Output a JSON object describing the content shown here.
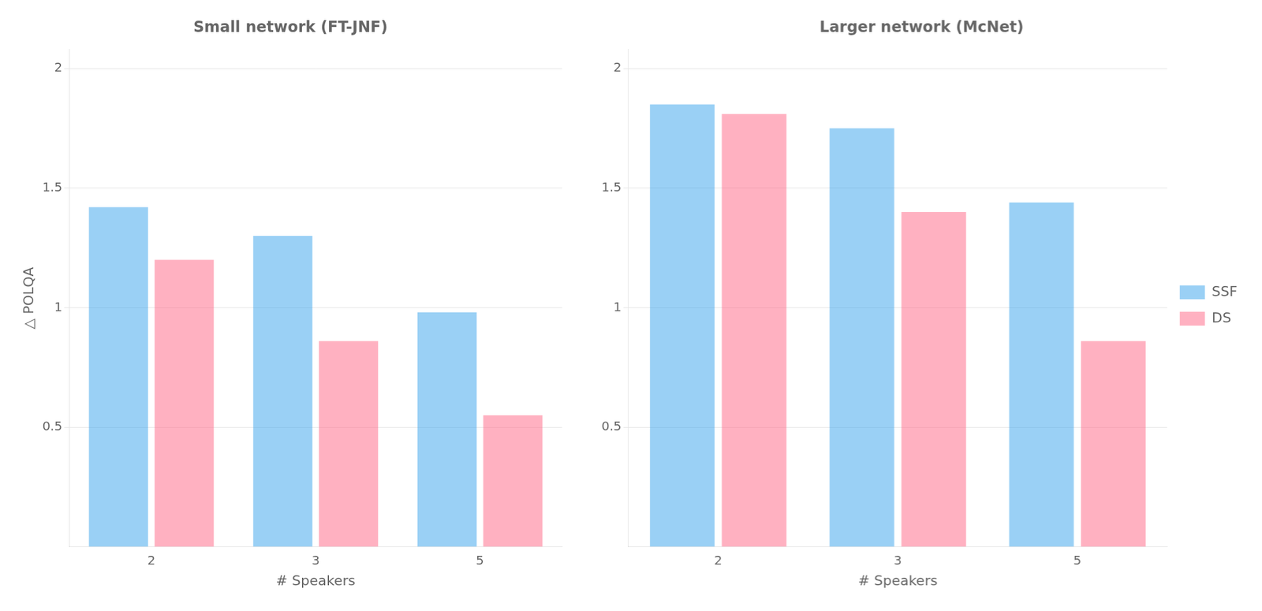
{
  "chart_data": [
    {
      "type": "bar",
      "title": "Small network (FT-JNF)",
      "x_label": "# Speakers",
      "y_label": "△ POLQA",
      "categories": [
        2,
        3,
        5
      ],
      "series": [
        {
          "name": "SSF",
          "values": [
            1.42,
            1.3,
            0.98
          ]
        },
        {
          "name": "DS",
          "values": [
            1.2,
            0.86,
            0.55
          ]
        }
      ],
      "ylim": [
        0.0,
        2.08
      ],
      "yticks": [
        0.5,
        1,
        1.5,
        2
      ],
      "grid": true
    },
    {
      "type": "bar",
      "title": "Larger network (McNet)",
      "x_label": "# Speakers",
      "categories": [
        2,
        3,
        5
      ],
      "series": [
        {
          "name": "SSF",
          "values": [
            1.85,
            1.75,
            1.44
          ]
        },
        {
          "name": "DS",
          "values": [
            1.81,
            1.4,
            0.86
          ]
        }
      ],
      "ylim": [
        0.0,
        2.08
      ],
      "yticks": [
        0.5,
        1,
        1.5,
        2
      ],
      "grid": true,
      "legend": "right"
    }
  ]
}
